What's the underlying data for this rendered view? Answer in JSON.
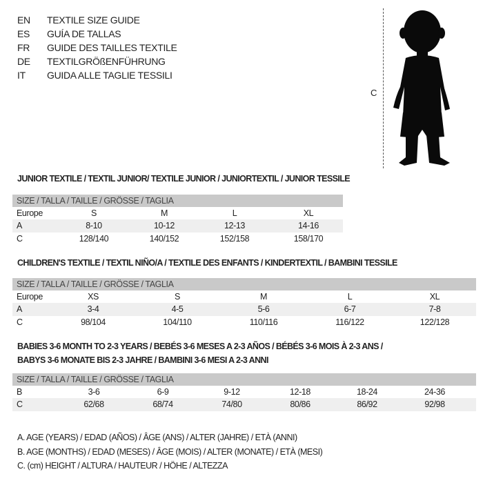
{
  "languages": [
    {
      "code": "EN",
      "title": "TEXTILE SIZE GUIDE"
    },
    {
      "code": "ES",
      "title": "GUÍA DE TALLAS"
    },
    {
      "code": "FR",
      "title": "GUIDE DES TAILLES TEXTILE"
    },
    {
      "code": "DE",
      "title": "TEXTILGRÖßENFÜHRUNG"
    },
    {
      "code": "IT",
      "title": "GUIDA ALLE TAGLIE TESSILI"
    }
  ],
  "figure": {
    "measure_label": "C",
    "icon": "baby-silhouette"
  },
  "junior": {
    "title": "JUNIOR TEXTILE / TEXTIL JUNIOR/ TEXTILE JUNIOR / JUNIORTEXTIL / JUNIOR TESSILE",
    "header": "SIZE / TALLA / TAILLE / GRÖSSE / TAGLIA",
    "rows": [
      {
        "label": "Europe",
        "cells": [
          "S",
          "M",
          "L",
          "XL"
        ]
      },
      {
        "label": "A",
        "cells": [
          "8-10",
          "10-12",
          "12-13",
          "14-16"
        ]
      },
      {
        "label": "C",
        "cells": [
          "128/140",
          "140/152",
          "152/158",
          "158/170"
        ]
      }
    ]
  },
  "children": {
    "title": "CHILDREN'S TEXTILE / TEXTIL NIÑO/A / TEXTILE DES ENFANTS / KINDERTEXTIL / BAMBINI TESSILE",
    "header": "SIZE / TALLA / TAILLE / GRÖSSE / TAGLIA",
    "rows": [
      {
        "label": "Europe",
        "cells": [
          "XS",
          "S",
          "M",
          "L",
          "XL"
        ]
      },
      {
        "label": "A",
        "cells": [
          "3-4",
          "4-5",
          "5-6",
          "6-7",
          "7-8"
        ]
      },
      {
        "label": "C",
        "cells": [
          "98/104",
          "104/110",
          "110/116",
          "116/122",
          "122/128"
        ]
      }
    ]
  },
  "babies": {
    "title_line1": "BABIES 3-6 MONTH TO 2-3 YEARS / BEBÉS 3-6 MESES A 2-3 AÑOS / BÉBÉS 3-6 MOIS À 2-3 ANS /",
    "title_line2": "BABYS 3-6 MONATE BIS 2-3 JAHRE / BAMBINI 3-6 MESI A 2-3 ANNI",
    "header": "SIZE / TALLA / TAILLE / GRÖSSE / TAGLIA",
    "rows": [
      {
        "label": "B",
        "cells": [
          "3-6",
          "6-9",
          "9-12",
          "12-18",
          "18-24",
          "24-36"
        ]
      },
      {
        "label": "C",
        "cells": [
          "62/68",
          "68/74",
          "74/80",
          "80/86",
          "86/92",
          "92/98"
        ]
      }
    ]
  },
  "legend": [
    "A. AGE (YEARS) / EDAD (AÑOS) / ÂGE (ANS) / ALTER (JAHRE) / ETÀ (ANNI)",
    "B. AGE (MONTHS) / EDAD (MESES) / ÂGE (MOIS) / ALTER (MONATE) / ETÀ (MESI)",
    "C. (cm) HEIGHT / ALTURA / HAUTEUR / HÖHE / ALTEZZA"
  ]
}
